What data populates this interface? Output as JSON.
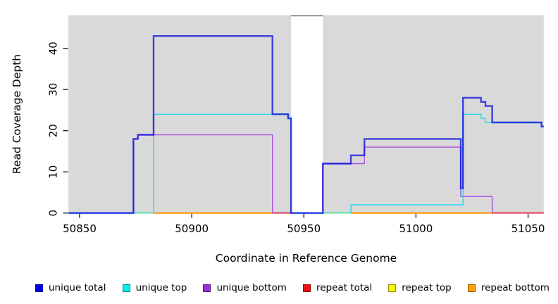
{
  "chart_data": {
    "type": "line",
    "subtype": "step-coverage-plot",
    "title": "",
    "xlabel": "Coordinate in Reference Genome",
    "ylabel": "Read Coverage Depth",
    "xlim": [
      50845,
      51057
    ],
    "ylim": [
      0,
      48
    ],
    "x_ticks": [
      50850,
      50900,
      50950,
      51000,
      51050
    ],
    "y_ticks": [
      0,
      10,
      20,
      30,
      40
    ],
    "grid": false,
    "panel_bg": "#d9d9d9",
    "page_bg": "#ffffff",
    "tick_color": "#000000",
    "no_data_gap": {
      "from": 50944.3,
      "to": 50958.5,
      "fill": "#ffffff",
      "top_border_color": "#8a8a8a"
    },
    "series": [
      {
        "id": "repeat-top",
        "name": "repeat top",
        "color": "#f0f000",
        "opacity": 1,
        "width": 1.6,
        "segments": [
          [
            [
              50875,
              0
            ],
            [
              50883,
              0
            ]
          ],
          [
            [
              50958.5,
              0
            ],
            [
              50971,
              0
            ]
          ]
        ]
      },
      {
        "id": "repeat-bottom",
        "name": "repeat bottom",
        "color": "#ff9300",
        "opacity": 1,
        "width": 2,
        "segments": [
          [
            [
              50883,
              0
            ],
            [
              50936,
              0
            ]
          ],
          [
            [
              50971,
              0
            ],
            [
              51034,
              0
            ]
          ]
        ]
      },
      {
        "id": "unique-bottom",
        "name": "unique bottom",
        "color": "#a03ce0",
        "opacity": 0.85,
        "width": 1.4,
        "segments": [
          [
            [
              50845,
              0
            ],
            [
              50874,
              18
            ],
            [
              50876,
              19
            ],
            [
              50936,
              0
            ],
            [
              50958.5,
              12
            ],
            [
              50977,
              16
            ],
            [
              51020,
              4
            ],
            [
              51034,
              0
            ],
            [
              51057,
              0
            ]
          ]
        ]
      },
      {
        "id": "unique-top",
        "name": "unique top",
        "color": "#00dcea",
        "opacity": 0.85,
        "width": 1.4,
        "segments": [
          [
            [
              50845,
              0
            ],
            [
              50883,
              24
            ],
            [
              50943,
              23
            ],
            [
              50944.3,
              0
            ],
            [
              50971,
              2
            ],
            [
              51021,
              24
            ],
            [
              51029,
              23
            ],
            [
              51031,
              22
            ],
            [
              51056,
              21
            ],
            [
              51057,
              21
            ]
          ]
        ]
      },
      {
        "id": "unique-total",
        "name": "unique total",
        "color": "#0a0ae0",
        "opacity": 0.75,
        "width": 2.4,
        "segments": [
          [
            [
              50845,
              0
            ],
            [
              50874,
              18
            ],
            [
              50876,
              19
            ],
            [
              50883,
              43
            ],
            [
              50936,
              24
            ],
            [
              50943,
              23
            ],
            [
              50944.3,
              0
            ],
            [
              50958.5,
              12
            ],
            [
              50971,
              14
            ],
            [
              50977,
              18
            ],
            [
              51020,
              6
            ],
            [
              51021,
              28
            ],
            [
              51029,
              27
            ],
            [
              51031,
              26
            ],
            [
              51034,
              22
            ],
            [
              51056,
              21
            ],
            [
              51057,
              21
            ]
          ]
        ]
      },
      {
        "id": "repeat-total",
        "name": "repeat total",
        "color": "#e01030",
        "opacity": 0.95,
        "width": 1.6,
        "segments": [
          [
            [
              50936,
              0
            ],
            [
              50944,
              0
            ]
          ],
          [
            [
              51034,
              0
            ],
            [
              51057,
              0
            ]
          ]
        ]
      }
    ]
  },
  "legend": {
    "items": [
      {
        "id": "unique-total",
        "label": "unique total",
        "fill": "#0000ee",
        "border": "#00009a"
      },
      {
        "id": "unique-top",
        "label": "unique top",
        "fill": "#00eeee",
        "border": "#007f8c"
      },
      {
        "id": "unique-bottom",
        "label": "unique bottom",
        "fill": "#9b30d9",
        "border": "#5a1687"
      },
      {
        "id": "repeat-total",
        "label": "repeat total",
        "fill": "#ee1111",
        "border": "#8c0000"
      },
      {
        "id": "repeat-top",
        "label": "repeat top",
        "fill": "#f5f50a",
        "border": "#8c8c00"
      },
      {
        "id": "repeat-bottom",
        "label": "repeat bottom",
        "fill": "#ffa10a",
        "border": "#995c00"
      }
    ]
  }
}
